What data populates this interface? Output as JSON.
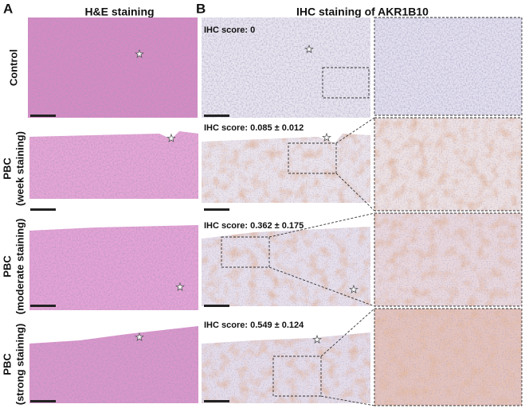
{
  "panel_a": {
    "label": "A",
    "title": "H&E staining"
  },
  "panel_b": {
    "label": "B",
    "title": "IHC staining of AKR1B10"
  },
  "rows": [
    {
      "label_lines": [
        "Control"
      ],
      "ihc_score": "IHC score: 0"
    },
    {
      "label_lines": [
        "PBC",
        "(week staining)"
      ],
      "ihc_score": "IHC score: 0.085 ± 0.012"
    },
    {
      "label_lines": [
        "PBC",
        "(moderate staining)"
      ],
      "ihc_score": "IHC score: 0.362 ± 0.175"
    },
    {
      "label_lines": [
        "PBC",
        "(strong staining)"
      ],
      "ihc_score": "IHC score: 0.549 ± 0.124"
    }
  ]
}
